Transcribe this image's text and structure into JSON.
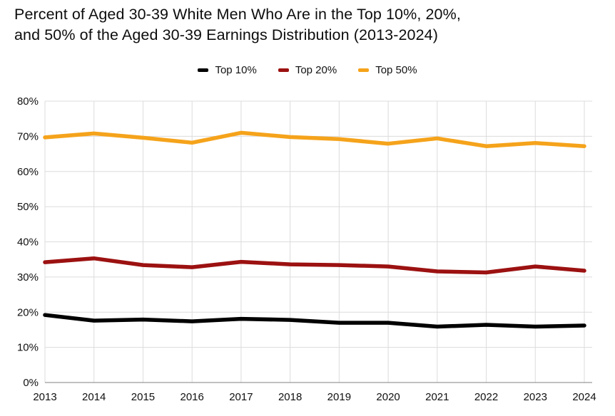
{
  "title_lines": [
    "Percent of Aged 30-39 White Men Who Are in the Top 10%, 20%,",
    "and 50% of the Aged 30-39 Earnings Distribution (2013-2024)"
  ],
  "colors": {
    "background": "#ffffff",
    "grid": "#dcdcdc",
    "axis_line": "#808080",
    "text": "#111111"
  },
  "chart_data": {
    "type": "line",
    "title": "Percent of Aged 30-39 White Men Who Are in the Top 10%, 20%, and 50% of the Aged 30-39 Earnings Distribution (2013-2024)",
    "categories": [
      "2013",
      "2014",
      "2015",
      "2016",
      "2017",
      "2018",
      "2019",
      "2020",
      "2021",
      "2022",
      "2023",
      "2024"
    ],
    "series": [
      {
        "name": "Top 10%",
        "color": "#000000",
        "values": [
          19.2,
          17.6,
          17.9,
          17.4,
          18.1,
          17.8,
          17.0,
          17.0,
          15.9,
          16.4,
          15.9,
          16.2
        ]
      },
      {
        "name": "Top 20%",
        "color": "#9c1111",
        "values": [
          34.2,
          35.3,
          33.4,
          32.8,
          34.3,
          33.6,
          33.4,
          33.0,
          31.6,
          31.3,
          33.0,
          31.8
        ]
      },
      {
        "name": "Top 50%",
        "color": "#f5a31b",
        "values": [
          69.7,
          70.8,
          69.6,
          68.2,
          71.0,
          69.8,
          69.2,
          67.9,
          69.4,
          67.2,
          68.1,
          67.2
        ]
      }
    ],
    "xlabel": "",
    "ylabel": "",
    "ylim": [
      0,
      80
    ],
    "ytick_step": 10,
    "ytick_suffix": "%",
    "grid": "both",
    "legend_position": "top"
  }
}
